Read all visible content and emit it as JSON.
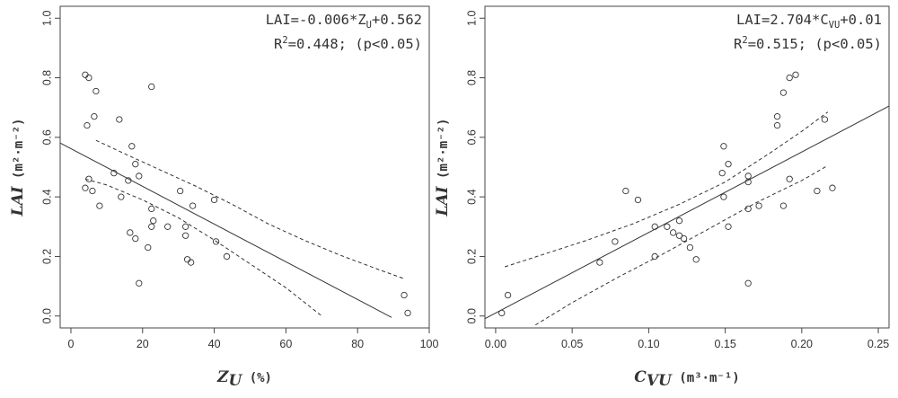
{
  "chart_data": [
    {
      "type": "scatter",
      "xlabel_var": "Z",
      "xlabel_sub": "U",
      "xlabel_unit": "(%)",
      "ylabel_var": "LAI",
      "ylabel_unit": "(m²·m⁻²)",
      "xlim": [
        -3,
        100
      ],
      "ylim": [
        -0.04,
        1.04
      ],
      "xticks": [
        0,
        20,
        40,
        60,
        80,
        100
      ],
      "xtick_labels": [
        "0",
        "20",
        "40",
        "60",
        "80",
        "100"
      ],
      "yticks": [
        0.0,
        0.2,
        0.4,
        0.6,
        0.8,
        1.0
      ],
      "ytick_labels": [
        "0.0",
        "0.2",
        "0.4",
        "0.6",
        "0.8",
        "1.0"
      ],
      "annotation_line1": {
        "pre": "LAI=-0.006*Z",
        "sub": "U",
        "post": "+0.562"
      },
      "annotation_line2": {
        "pre": "R",
        "sup": "2",
        "post": "=0.448; (p<0.05)"
      },
      "fit_line": {
        "slope": -0.006333,
        "intercept": 0.562,
        "x_range": [
          -3,
          89.5
        ]
      },
      "ci_upper": [
        [
          7,
          0.59
        ],
        [
          15,
          0.545
        ],
        [
          25,
          0.49
        ],
        [
          35,
          0.435
        ],
        [
          45,
          0.375
        ],
        [
          55,
          0.31
        ],
        [
          65,
          0.255
        ],
        [
          75,
          0.205
        ],
        [
          85,
          0.16
        ],
        [
          93,
          0.125
        ]
      ],
      "ci_lower": [
        [
          4,
          0.46
        ],
        [
          10,
          0.44
        ],
        [
          20,
          0.39
        ],
        [
          30,
          0.33
        ],
        [
          40,
          0.255
        ],
        [
          50,
          0.175
        ],
        [
          60,
          0.095
        ],
        [
          70,
          0.0
        ]
      ],
      "points": [
        [
          4,
          0.81
        ],
        [
          5,
          0.8
        ],
        [
          7,
          0.755
        ],
        [
          6.5,
          0.67
        ],
        [
          4.5,
          0.64
        ],
        [
          13.5,
          0.66
        ],
        [
          22.5,
          0.77
        ],
        [
          17,
          0.57
        ],
        [
          18,
          0.51
        ],
        [
          12,
          0.48
        ],
        [
          16,
          0.455
        ],
        [
          19,
          0.47
        ],
        [
          5,
          0.46
        ],
        [
          4,
          0.43
        ],
        [
          6,
          0.42
        ],
        [
          8,
          0.37
        ],
        [
          14,
          0.4
        ],
        [
          30.5,
          0.42
        ],
        [
          40,
          0.39
        ],
        [
          34,
          0.37
        ],
        [
          22.5,
          0.36
        ],
        [
          23,
          0.32
        ],
        [
          22.5,
          0.3
        ],
        [
          27,
          0.3
        ],
        [
          32,
          0.3
        ],
        [
          16.5,
          0.28
        ],
        [
          32,
          0.27
        ],
        [
          18,
          0.26
        ],
        [
          21.5,
          0.23
        ],
        [
          40.5,
          0.25
        ],
        [
          43.5,
          0.2
        ],
        [
          32.5,
          0.19
        ],
        [
          33.5,
          0.18
        ],
        [
          19,
          0.11
        ],
        [
          93,
          0.07
        ],
        [
          94,
          0.01
        ]
      ]
    },
    {
      "type": "scatter",
      "xlabel_var": "C",
      "xlabel_sub": "VU",
      "xlabel_unit": "(m³·m⁻¹)",
      "ylabel_var": "LAI",
      "ylabel_unit": "(m²·m⁻²)",
      "xlim": [
        -0.007,
        0.257
      ],
      "ylim": [
        -0.04,
        1.04
      ],
      "xticks": [
        0.0,
        0.05,
        0.1,
        0.15,
        0.2,
        0.25
      ],
      "xtick_labels": [
        "0.00",
        "0.05",
        "0.10",
        "0.15",
        "0.20",
        "0.25"
      ],
      "yticks": [
        0.0,
        0.2,
        0.4,
        0.6,
        0.8,
        1.0
      ],
      "ytick_labels": [
        "0.0",
        "0.2",
        "0.4",
        "0.6",
        "0.8",
        "1.0"
      ],
      "annotation_line1": {
        "pre": "LAI=2.704*C",
        "sub": "VU",
        "post": "+0.01"
      },
      "annotation_line2": {
        "pre": "R",
        "sup": "2",
        "post": "=0.515; (p<0.05)"
      },
      "fit_line": {
        "slope": 2.704,
        "intercept": 0.01,
        "x_range": [
          -0.007,
          0.257
        ]
      },
      "ci_upper": [
        [
          0.006,
          0.165
        ],
        [
          0.03,
          0.205
        ],
        [
          0.06,
          0.255
        ],
        [
          0.09,
          0.31
        ],
        [
          0.12,
          0.375
        ],
        [
          0.15,
          0.45
        ],
        [
          0.18,
          0.55
        ],
        [
          0.2,
          0.62
        ],
        [
          0.217,
          0.685
        ]
      ],
      "ci_lower": [
        [
          0.026,
          -0.03
        ],
        [
          0.05,
          0.045
        ],
        [
          0.08,
          0.13
        ],
        [
          0.11,
          0.21
        ],
        [
          0.14,
          0.295
        ],
        [
          0.17,
          0.38
        ],
        [
          0.2,
          0.455
        ],
        [
          0.217,
          0.505
        ]
      ],
      "points": [
        [
          0.004,
          0.01
        ],
        [
          0.008,
          0.07
        ],
        [
          0.068,
          0.18
        ],
        [
          0.078,
          0.25
        ],
        [
          0.085,
          0.42
        ],
        [
          0.093,
          0.39
        ],
        [
          0.104,
          0.2
        ],
        [
          0.104,
          0.3
        ],
        [
          0.112,
          0.3
        ],
        [
          0.116,
          0.28
        ],
        [
          0.12,
          0.32
        ],
        [
          0.12,
          0.27
        ],
        [
          0.123,
          0.26
        ],
        [
          0.127,
          0.23
        ],
        [
          0.131,
          0.19
        ],
        [
          0.149,
          0.57
        ],
        [
          0.148,
          0.48
        ],
        [
          0.152,
          0.51
        ],
        [
          0.149,
          0.4
        ],
        [
          0.152,
          0.3
        ],
        [
          0.165,
          0.47
        ],
        [
          0.165,
          0.45
        ],
        [
          0.165,
          0.36
        ],
        [
          0.172,
          0.37
        ],
        [
          0.165,
          0.11
        ],
        [
          0.184,
          0.67
        ],
        [
          0.184,
          0.64
        ],
        [
          0.188,
          0.75
        ],
        [
          0.192,
          0.8
        ],
        [
          0.196,
          0.81
        ],
        [
          0.215,
          0.66
        ],
        [
          0.192,
          0.46
        ],
        [
          0.188,
          0.37
        ],
        [
          0.21,
          0.42
        ],
        [
          0.22,
          0.43
        ]
      ]
    }
  ]
}
